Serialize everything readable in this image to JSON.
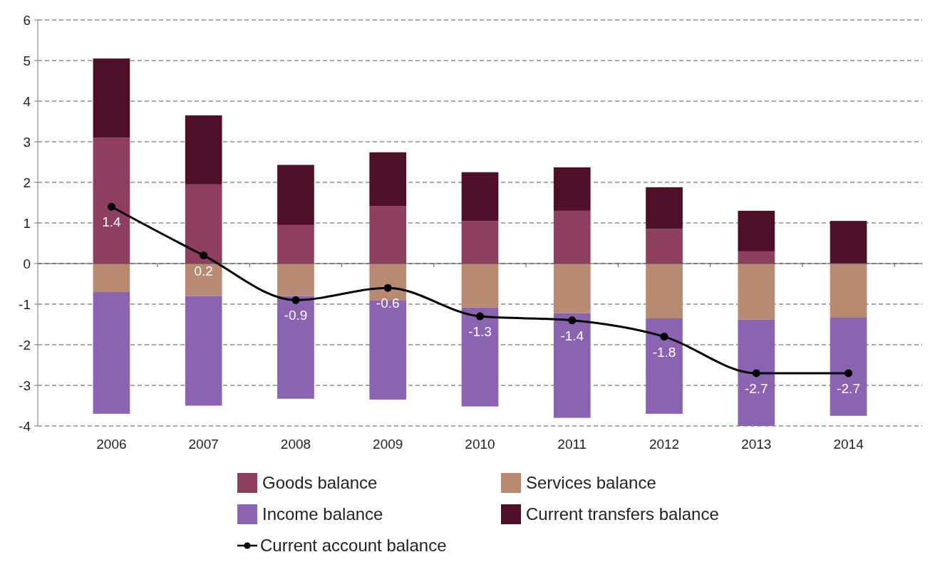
{
  "chart_data": {
    "type": "bar",
    "stacked": true,
    "categories": [
      "2006",
      "2007",
      "2008",
      "2009",
      "2010",
      "2011",
      "2012",
      "2013",
      "2014"
    ],
    "ylim": [
      -4,
      6
    ],
    "yticks": [
      -4,
      -3,
      -2,
      -1,
      0,
      1,
      2,
      3,
      4,
      5,
      6
    ],
    "grid": "y",
    "legend": "bottom",
    "series": [
      {
        "name": "Goods balance",
        "color": "#8e3e5e",
        "values": [
          3.1,
          1.95,
          0.95,
          1.42,
          1.05,
          1.3,
          0.85,
          0.3,
          0
        ]
      },
      {
        "name": "Services balance",
        "color": "#b98a72",
        "values": [
          -0.7,
          -0.8,
          -0.8,
          -0.9,
          -1.08,
          -1.22,
          -1.35,
          -1.38,
          -1.32
        ]
      },
      {
        "name": "Income balance",
        "color": "#8a64b0",
        "values": [
          -3.0,
          -2.7,
          -2.53,
          -2.45,
          -2.44,
          -2.58,
          -2.35,
          -2.62,
          -2.43
        ]
      },
      {
        "name": "Current transfers balance",
        "color": "#4e1028",
        "values": [
          1.95,
          1.7,
          1.48,
          1.32,
          1.2,
          1.07,
          1.03,
          1.0,
          1.05
        ]
      },
      {
        "name": "Current account balance",
        "type": "line",
        "color": "#000000",
        "marker": "circle",
        "values": [
          1.4,
          0.2,
          -0.9,
          -0.6,
          -1.3,
          -1.4,
          -1.8,
          -2.7,
          -2.7
        ],
        "value_labels": [
          "1.4",
          "0.2",
          "-0.9",
          "-0.6",
          "-1.3",
          "-1.4",
          "-1.8",
          "-2.7",
          "-2.7"
        ]
      }
    ]
  }
}
